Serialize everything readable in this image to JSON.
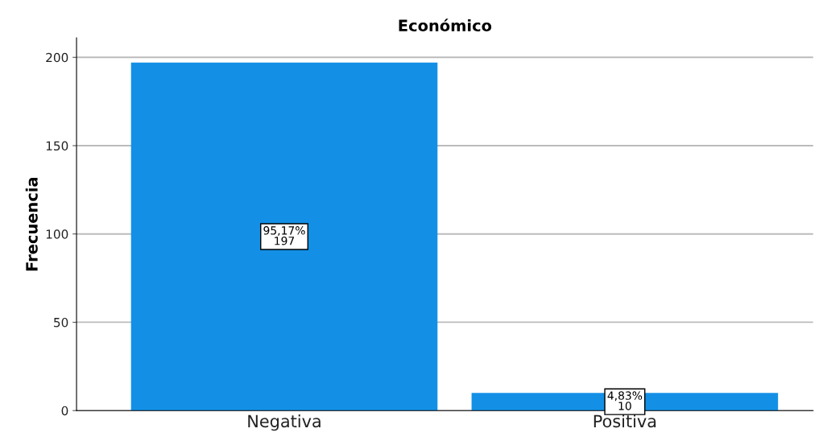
{
  "chart_data": {
    "type": "bar",
    "title": "Económico",
    "ylabel": "Frecuencia",
    "categories": [
      "Negativa",
      "Positiva"
    ],
    "values": [
      197,
      10
    ],
    "value_labels": [
      "95,17%\n197",
      "4,83%\n10"
    ],
    "color": "#1390e6",
    "ylim": [
      0,
      211
    ],
    "yticks": [
      0,
      50,
      100,
      150,
      200
    ],
    "grid": "y"
  }
}
